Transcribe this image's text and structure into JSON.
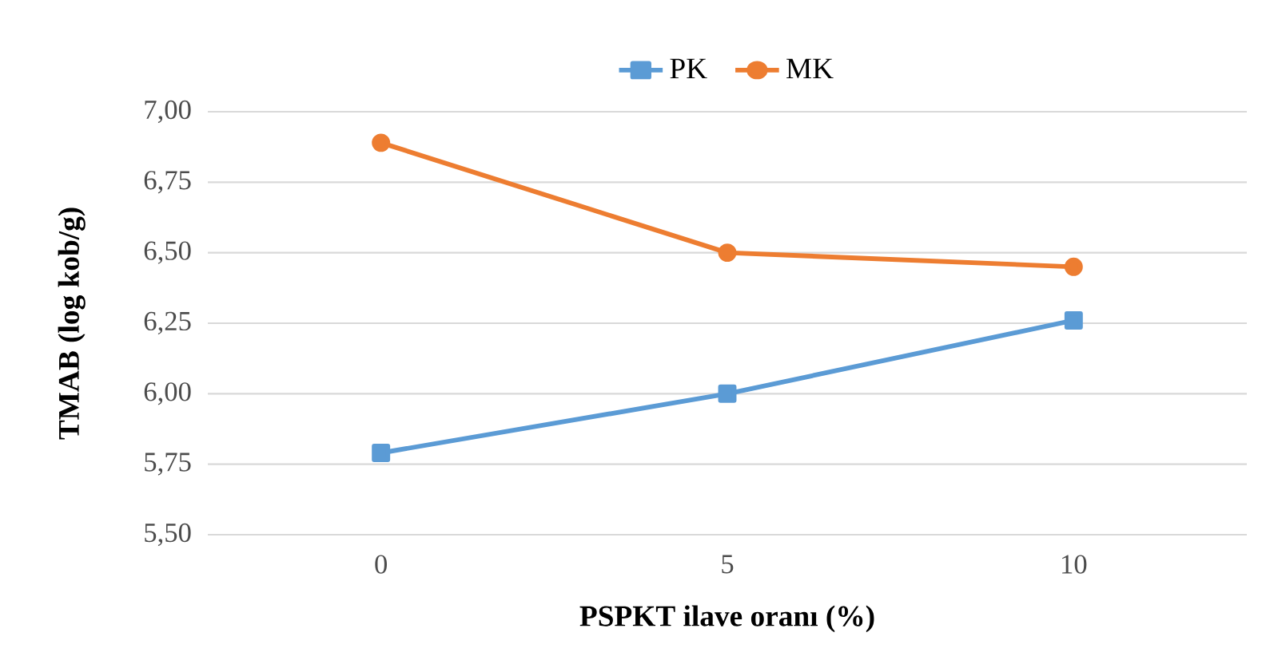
{
  "chart_data": {
    "type": "line",
    "xlabel": "PSPKT ilave oranı (%)",
    "ylabel": "TMAB  (log kob/g)",
    "categories": [
      "0",
      "5",
      "10"
    ],
    "series": [
      {
        "name": "PK",
        "color": "#5b9bd5",
        "marker": "square",
        "values": [
          5.79,
          6.0,
          6.26
        ]
      },
      {
        "name": "MK",
        "color": "#ed7d31",
        "marker": "circle",
        "values": [
          6.89,
          6.5,
          6.45
        ]
      }
    ],
    "ylim": [
      5.5,
      7.0
    ],
    "yticks": [
      {
        "value": 5.5,
        "label": "5,50"
      },
      {
        "value": 5.75,
        "label": "5,75"
      },
      {
        "value": 6.0,
        "label": "6,00"
      },
      {
        "value": 6.25,
        "label": "6,25"
      },
      {
        "value": 6.5,
        "label": "6,50"
      },
      {
        "value": 6.75,
        "label": "6,75"
      },
      {
        "value": 7.0,
        "label": "7,00"
      }
    ],
    "grid": "y",
    "legend": "top",
    "line_style": "solid"
  }
}
